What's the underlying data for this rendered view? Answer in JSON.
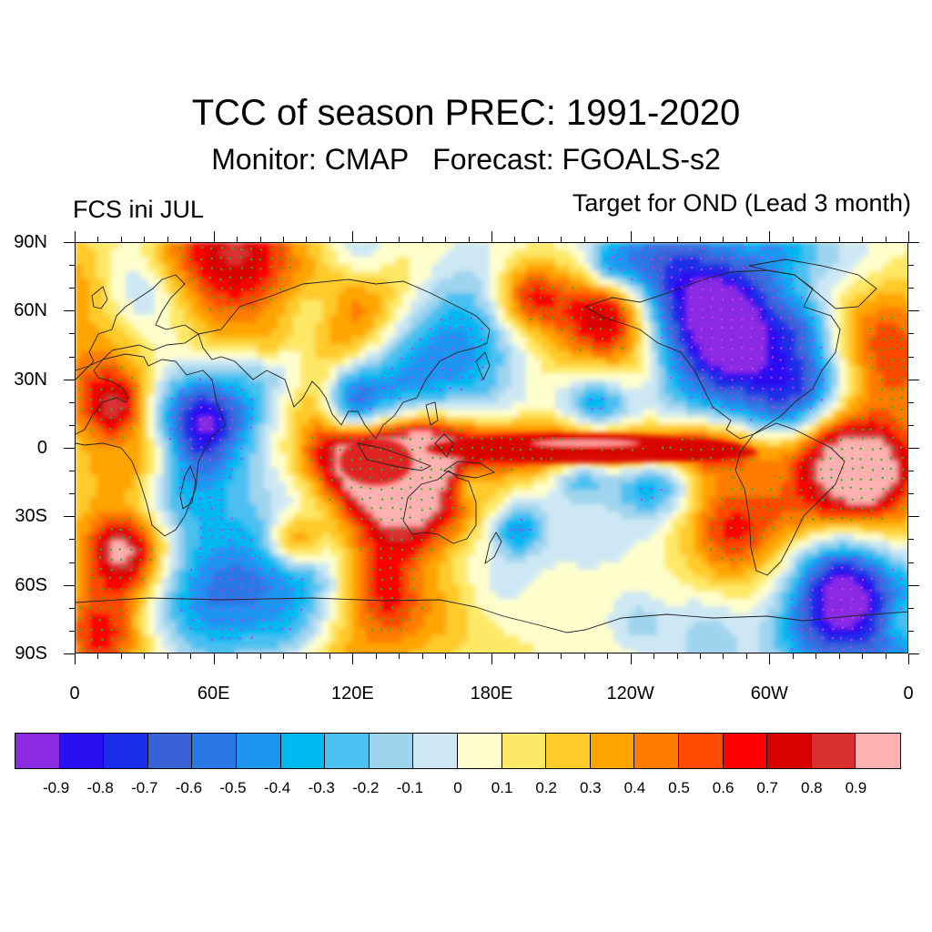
{
  "title": "TCC of season PREC: 1991-2020",
  "subtitle": "Monitor: CMAP   Forecast: FGOALS-s2",
  "left_label": "FCS ini JUL",
  "right_label": "Target for OND (Lead 3 month)",
  "lat_labels": [
    "90N",
    "60N",
    "30N",
    "0",
    "30S",
    "60S",
    "90S"
  ],
  "lon_labels": [
    "0",
    "60E",
    "120E",
    "180E",
    "120W",
    "60W",
    "0"
  ],
  "colorbar": {
    "colors": [
      "#8a2be2",
      "#2a10f0",
      "#1a2de8",
      "#3a62d8",
      "#2a78e6",
      "#1e96f0",
      "#00b8f0",
      "#4cc0f0",
      "#9fd4ee",
      "#cde8f4",
      "#fffecc",
      "#ffe866",
      "#ffcb2c",
      "#ffa400",
      "#ff7c00",
      "#ff4a00",
      "#ff0000",
      "#d80000",
      "#d83030",
      "#ffb0b0"
    ],
    "labels": [
      "-0.9",
      "-0.8",
      "-0.7",
      "-0.6",
      "-0.5",
      "-0.4",
      "-0.3",
      "-0.2",
      "-0.1",
      "0",
      "0.1",
      "0.2",
      "0.3",
      "0.4",
      "0.5",
      "0.6",
      "0.7",
      "0.8",
      "0.9"
    ]
  },
  "stipple_colors": {
    "positive_significant": "#22bb22",
    "negative_significant": "#cc33ff"
  }
}
